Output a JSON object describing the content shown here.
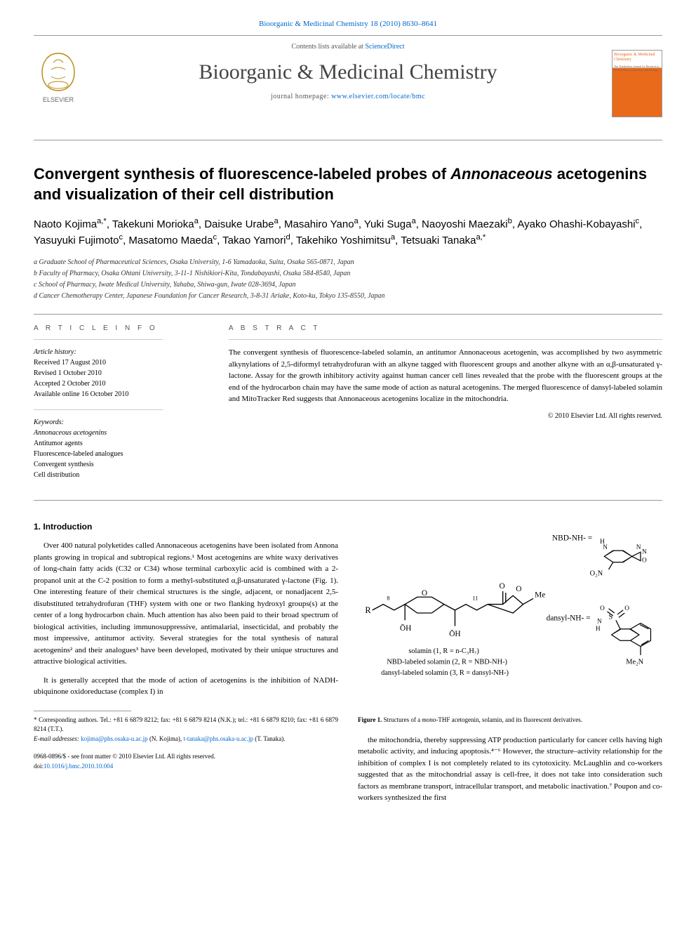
{
  "citation": {
    "journal": "Bioorganic & Medicinal Chemistry",
    "vol": "18",
    "year": "2010",
    "pages": "8630–8641"
  },
  "header": {
    "contents_prefix": "Contents lists available at ",
    "contents_link": "ScienceDirect",
    "journal_title": "Bioorganic & Medicinal Chemistry",
    "homepage_prefix": "journal homepage: ",
    "homepage_link": "www.elsevier.com/locate/bmc",
    "elsevier_label": "ELSEVIER",
    "cover_title": "Bioorganic & Medicinal Chemistry",
    "cover_sub": "The Tetrahedron Journal for Research at the Interface of Chemistry and Biology"
  },
  "title_html": "Convergent synthesis of fluorescence-labeled probes of <em>Annonaceous</em> acetogenins and visualization of their cell distribution",
  "authors_html": "Naoto Kojima<sup>a,*</sup>, Takekuni Morioka<sup>a</sup>, Daisuke Urabe<sup>a</sup>, Masahiro Yano<sup>a</sup>, Yuki Suga<sup>a</sup>, Naoyoshi Maezaki<sup>b</sup>, Ayako Ohashi-Kobayashi<sup>c</sup>, Yasuyuki Fujimoto<sup>c</sup>, Masatomo Maeda<sup>c</sup>, Takao Yamori<sup>d</sup>, Takehiko Yoshimitsu<sup>a</sup>, Tetsuaki Tanaka<sup>a,*</sup>",
  "affiliations": [
    "a Graduate School of Pharmaceutical Sciences, Osaka University, 1-6 Yamadaoka, Suita, Osaka 565-0871, Japan",
    "b Faculty of Pharmacy, Osaka Ohtani University, 3-11-1 Nishikiori-Kita, Tondabayashi, Osaka 584-8540, Japan",
    "c School of Pharmacy, Iwate Medical University, Yahaba, Shiwa-gun, Iwate 028-3694, Japan",
    "d Cancer Chemotherapy Center, Japanese Foundation for Cancer Research, 3-8-31 Ariake, Koto-ku, Tokyo 135-8550, Japan"
  ],
  "info": {
    "head": "A R T I C L E   I N F O",
    "history_label": "Article history:",
    "history": [
      "Received 17 August 2010",
      "Revised 1 October 2010",
      "Accepted 2 October 2010",
      "Available online 16 October 2010"
    ],
    "keywords_label": "Keywords:",
    "keywords": [
      "Annonaceous acetogenins",
      "Antitumor agents",
      "Fluorescence-labeled analogues",
      "Convergent synthesis",
      "Cell distribution"
    ]
  },
  "abstract": {
    "head": "A B S T R A C T",
    "text": "The convergent synthesis of fluorescence-labeled solamin, an antitumor Annonaceous acetogenin, was accomplished by two asymmetric alkynylations of 2,5-diformyl tetrahydrofuran with an alkyne tagged with fluorescent groups and another alkyne with an α,β-unsaturated γ-lactone. Assay for the growth inhibitory activity against human cancer cell lines revealed that the probe with the fluorescent groups at the end of the hydrocarbon chain may have the same mode of action as natural acetogenins. The merged fluorescence of dansyl-labeled solamin and MitoTracker Red suggests that Annonaceous acetogenins localize in the mitochondria.",
    "copyright": "© 2010 Elsevier Ltd. All rights reserved."
  },
  "section1": {
    "num": "1.",
    "title": "Introduction"
  },
  "p1": "Over 400 natural polyketides called Annonaceous acetogenins have been isolated from Annona plants growing in tropical and subtropical regions.¹ Most acetogenins are white waxy derivatives of long-chain fatty acids (C32 or C34) whose terminal carboxylic acid is combined with a 2-propanol unit at the C-2 position to form a methyl-substituted α,β-unsaturated γ-lactone (Fig. 1). One interesting feature of their chemical structures is the single, adjacent, or nonadjacent 2,5-disubstituted tetrahydrofuran (THF) system with one or two flanking hydroxyl groups(s) at the center of a long hydrocarbon chain. Much attention has also been paid to their broad spectrum of biological activities, including immunosuppressive, antimalarial, insecticidal, and probably the most impressive, antitumor activity. Several strategies for the total synthesis of natural acetogenins² and their analogues³ have been developed, motivated by their unique structures and attractive biological activities.",
  "p2": "It is generally accepted that the mode of action of acetogenins is the inhibition of NADH-ubiquinone oxidoreductase (complex I) in",
  "p3": "the mitochondria, thereby suppressing ATP production particularly for cancer cells having high metabolic activity, and inducing apoptosis.⁴⁻⁶ However, the structure–activity relationship for the inhibition of complex I is not completely related to its cytotoxicity. McLaughlin and co-workers suggested that as the mitochondrial assay is cell-free, it does not take into consideration such factors as membrane transport, intracellular transport, and metabolic inactivation.⁷ Poupon and co-workers synthesized the first",
  "figure1": {
    "caption_html": "<b>Figure 1.</b> Structures of a <em>mono</em>-THF acetogenin, solamin, and its fluorescent derivatives.",
    "labels": {
      "nbd": "NBD-NH-  =",
      "dansyl": "dansyl-NH-  =",
      "l1": "solamin (1, R = n-C₃H₇)",
      "l2": "NBD-labeled solamin (2, R = NBD-NH-)",
      "l3": "dansyl-labeled solamin (3, R = dansyl-NH-)",
      "me": "Me",
      "oh": "ŌH",
      "r": "R",
      "no2": "O₂N",
      "me2n": "Me₂N",
      "o": "O",
      "s": "S",
      "n": "N",
      "h": "H"
    },
    "colors": {
      "stroke": "#000",
      "text": "#000",
      "bg": "#fff"
    }
  },
  "footnotes": {
    "corr": "* Corresponding authors. Tel.: +81 6 6879 8212; fax: +81 6 6879 8214 (N.K.); tel.: +81 6 6879 8210; fax: +81 6 6879 8214 (T.T.).",
    "email_label": "E-mail addresses: ",
    "email1": "kojima@phs.osaka-u.ac.jp",
    "email1_who": " (N. Kojima), ",
    "email2": "t-tanaka@phs.osaka-u.ac.jp",
    "email2_who": " (T. Tanaka)."
  },
  "footer": {
    "copyright": "0968-0896/$ - see front matter © 2010 Elsevier Ltd. All rights reserved.",
    "doi_prefix": "doi:",
    "doi": "10.1016/j.bmc.2010.10.004"
  }
}
